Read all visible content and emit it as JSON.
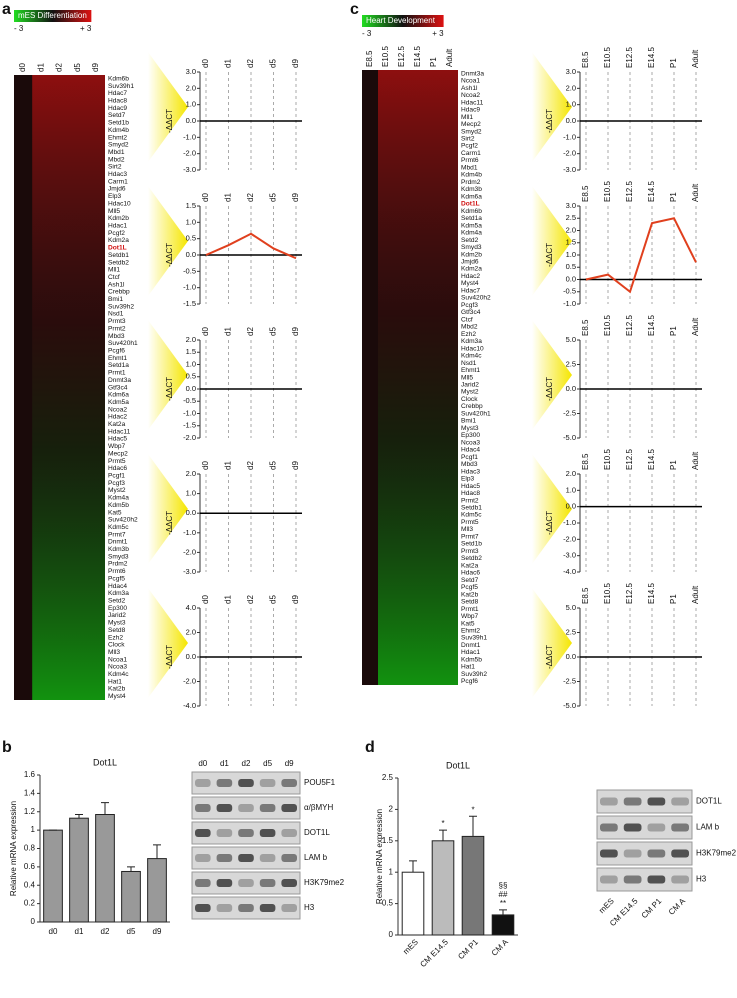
{
  "panel_labels": [
    "a",
    "b",
    "c",
    "d"
  ],
  "heatmap_a": {
    "title": "mES Differentiation",
    "scale_min": "- 3",
    "scale_max": "+ 3",
    "columns": [
      "d0",
      "d1",
      "d2",
      "d5",
      "d9"
    ],
    "highlight": 23,
    "genes": [
      "Kdm6b",
      "Suv39h1",
      "Hdac7",
      "Hdac8",
      "Hdac9",
      "Setd7",
      "Setd1b",
      "Kdm4b",
      "Ehmt2",
      "Smyd2",
      "Mbd1",
      "Mbd2",
      "Sirt2",
      "Hdac3",
      "Carm1",
      "Jmjd6",
      "Elp3",
      "Hdac10",
      "Mll5",
      "Kdm2b",
      "Hdac1",
      "Pcgf2",
      "Kdm2a",
      "Dot1L",
      "Setdb1",
      "Setdb2",
      "Mll1",
      "Ctcf",
      "Ash1l",
      "Crebbp",
      "Bmi1",
      "Suv39h2",
      "Nsd1",
      "Prmt3",
      "Prmt2",
      "Mbd3",
      "Suv420h1",
      "Pcgf6",
      "Ehmt1",
      "Setd1a",
      "Prmt1",
      "Dnmt3a",
      "Gtf3c4",
      "Kdm6a",
      "Kdm5a",
      "Ncoa2",
      "Hdac2",
      "Kat2a",
      "Hdac11",
      "Hdac5",
      "Wbp7",
      "Mecp2",
      "Prmt5",
      "Hdac6",
      "Pcgf1",
      "Pcgf3",
      "Myst2",
      "Kdm4a",
      "Kdm5b",
      "Kat5",
      "Suv420h2",
      "Kdm5c",
      "Prmt7",
      "Dnmt1",
      "Kdm3b",
      "Smyd3",
      "Prdm2",
      "Prmt6",
      "Pcgf5",
      "Hdac4",
      "Kdm3a",
      "Setd2",
      "Ep300",
      "Jarid2",
      "Myst3",
      "Setd8",
      "Ezh2",
      "Clock",
      "Mll3",
      "Ncoa1",
      "Ncoa3",
      "Kdm4c",
      "Hat1",
      "Kat2b",
      "Myst4"
    ]
  },
  "heatmap_c": {
    "title": "Heart Development",
    "scale_min": "- 3",
    "scale_max": "+ 3",
    "columns": [
      "E8.5",
      "E10.5",
      "E12.5",
      "E14.5",
      "P1",
      "Adult"
    ],
    "highlight": 18,
    "genes": [
      "Dnmt3a",
      "Ncoa1",
      "Ash1l",
      "Ncoa2",
      "Hdac11",
      "Hdac9",
      "Mll1",
      "Mecp2",
      "Smyd2",
      "Sirt2",
      "Pcgf2",
      "Carm1",
      "Prmt6",
      "Mbd1",
      "Kdm4b",
      "Prdm2",
      "Kdm3b",
      "Kdm6a",
      "Dot1L",
      "Kdm6b",
      "Setd1a",
      "Kdm5a",
      "Kdm4a",
      "Setd2",
      "Smyd3",
      "Kdm2b",
      "Jmjd6",
      "Kdm2a",
      "Hdac2",
      "Myst4",
      "Hdac7",
      "Suv420h2",
      "Pcgf3",
      "Gtf3c4",
      "Ctcf",
      "Mbd2",
      "Ezh2",
      "Kdm3a",
      "Hdac10",
      "Kdm4c",
      "Nsd1",
      "Ehmt1",
      "Mll5",
      "Jarid2",
      "Myst2",
      "Clock",
      "Crebbp",
      "Suv420h1",
      "Bmi1",
      "Myst3",
      "Ep300",
      "Ncoa3",
      "Hdac4",
      "Pcgf1",
      "Mbd3",
      "Hdac3",
      "Elp3",
      "Hdac5",
      "Hdac8",
      "Prmt2",
      "Setdb1",
      "Kdm5c",
      "Prmt5",
      "Mll3",
      "Prmt7",
      "Setd1b",
      "Prmt3",
      "Setdb2",
      "Kat2a",
      "Hdac6",
      "Setd7",
      "Pcgf5",
      "Kat2b",
      "Setd8",
      "Prmt1",
      "Wbp7",
      "Kat5",
      "Ehmt2",
      "Suv39h1",
      "Dnmt1",
      "Hdac1",
      "Kdm5b",
      "Hat1",
      "Suv39h2",
      "Pcgf6"
    ]
  },
  "profiles_a": [
    {
      "type": "line",
      "ylabel": "-ΔΔCT",
      "categories": [
        "d0",
        "d1",
        "d2",
        "d5",
        "d9"
      ],
      "ylim": [
        -3,
        3
      ],
      "yticks": [
        {
          "value": 3,
          "label": "3.0"
        },
        {
          "value": 2,
          "label": "2.0"
        },
        {
          "value": 1,
          "label": "1.0"
        },
        {
          "value": 0,
          "label": "0.0"
        },
        {
          "value": -1,
          "label": "-1.0"
        },
        {
          "value": -2,
          "label": "-2.0"
        },
        {
          "value": -3,
          "label": "-3.0"
        }
      ],
      "series": []
    },
    {
      "type": "line",
      "ylabel": "-ΔΔCT",
      "categories": [
        "d0",
        "d1",
        "d2",
        "d5",
        "d9"
      ],
      "ylim": [
        -1.5,
        1.5
      ],
      "yticks": [
        {
          "value": 1.5,
          "label": "1.5"
        },
        {
          "value": 1,
          "label": "1.0"
        },
        {
          "value": 0.5,
          "label": "0.5"
        },
        {
          "value": 0,
          "label": "0.0"
        },
        {
          "value": -0.5,
          "label": "-0.5"
        },
        {
          "value": -1,
          "label": "-1.0"
        },
        {
          "value": -1.5,
          "label": "-1.5"
        }
      ],
      "series": [
        {
          "color": "#e0401e",
          "values": [
            0,
            0.3,
            0.65,
            0.2,
            -0.1
          ]
        }
      ]
    },
    {
      "type": "line",
      "ylabel": "-ΔΔCT",
      "categories": [
        "d0",
        "d1",
        "d2",
        "d5",
        "d9"
      ],
      "ylim": [
        -2,
        2
      ],
      "yticks": [
        {
          "value": 2,
          "label": "2.0"
        },
        {
          "value": 1.5,
          "label": "1.5"
        },
        {
          "value": 1,
          "label": "1.0"
        },
        {
          "value": 0.5,
          "label": "0.5"
        },
        {
          "value": 0,
          "label": "0.0"
        },
        {
          "value": -0.5,
          "label": "-0.5"
        },
        {
          "value": -1,
          "label": "-1.0"
        },
        {
          "value": -1.5,
          "label": "-1.5"
        },
        {
          "value": -2,
          "label": "-2.0"
        }
      ],
      "series": []
    },
    {
      "type": "line",
      "ylabel": "-ΔΔCT",
      "categories": [
        "d0",
        "d1",
        "d2",
        "d5",
        "d9"
      ],
      "ylim": [
        -3,
        2
      ],
      "yticks": [
        {
          "value": 2,
          "label": "2.0"
        },
        {
          "value": 1,
          "label": "1.0"
        },
        {
          "value": 0,
          "label": "0.0"
        },
        {
          "value": -1,
          "label": "-1.0"
        },
        {
          "value": -2,
          "label": "-2.0"
        },
        {
          "value": -3,
          "label": "-3.0"
        }
      ],
      "series": []
    },
    {
      "type": "line",
      "ylabel": "-ΔΔCT",
      "categories": [
        "d0",
        "d1",
        "d2",
        "d5",
        "d9"
      ],
      "ylim": [
        -4,
        4
      ],
      "yticks": [
        {
          "value": 4,
          "label": "4.0"
        },
        {
          "value": 2,
          "label": "2.0"
        },
        {
          "value": 0,
          "label": "0.0"
        },
        {
          "value": -2,
          "label": "-2.0"
        },
        {
          "value": -4,
          "label": "-4.0"
        }
      ],
      "series": []
    }
  ],
  "profiles_c": [
    {
      "type": "line",
      "ylabel": "-ΔΔCT",
      "categories": [
        "E8.5",
        "E10.5",
        "E12.5",
        "E14.5",
        "P1",
        "Adult"
      ],
      "ylim": [
        -3,
        3
      ],
      "yticks": [
        {
          "value": 3,
          "label": "3.0"
        },
        {
          "value": 2,
          "label": "2.0"
        },
        {
          "value": 1,
          "label": "1.0"
        },
        {
          "value": 0,
          "label": "0.0"
        },
        {
          "value": -1,
          "label": "-1.0"
        },
        {
          "value": -2,
          "label": "-2.0"
        },
        {
          "value": -3,
          "label": "-3.0"
        }
      ],
      "series": []
    },
    {
      "type": "line",
      "ylabel": "-ΔΔCT",
      "categories": [
        "E8.5",
        "E10.5",
        "E12.5",
        "E14.5",
        "P1",
        "Adult"
      ],
      "ylim": [
        -1,
        3
      ],
      "yticks": [
        {
          "value": 3,
          "label": "3.0"
        },
        {
          "value": 2.5,
          "label": "2.5"
        },
        {
          "value": 2,
          "label": "2.0"
        },
        {
          "value": 1.5,
          "label": "1.5"
        },
        {
          "value": 1,
          "label": "1.0"
        },
        {
          "value": 0.5,
          "label": "0.5"
        },
        {
          "value": 0,
          "label": "0.0"
        },
        {
          "value": -0.5,
          "label": "-0.5"
        },
        {
          "value": -1,
          "label": "-1.0"
        }
      ],
      "series": [
        {
          "color": "#e0401e",
          "values": [
            0,
            0.2,
            -0.5,
            2.3,
            2.5,
            0.7
          ]
        }
      ]
    },
    {
      "type": "line",
      "ylabel": "-ΔΔCT",
      "categories": [
        "E8.5",
        "E10.5",
        "E12.5",
        "E14.5",
        "P1",
        "Adult"
      ],
      "ylim": [
        -5,
        5
      ],
      "yticks": [
        {
          "value": 5,
          "label": "5.0"
        },
        {
          "value": 2.5,
          "label": "2.5"
        },
        {
          "value": 0,
          "label": "0.0"
        },
        {
          "value": -2.5,
          "label": "-2.5"
        },
        {
          "value": -5,
          "label": "-5.0"
        }
      ],
      "series": []
    },
    {
      "type": "line",
      "ylabel": "-ΔΔCT",
      "categories": [
        "E8.5",
        "E10.5",
        "E12.5",
        "E14.5",
        "P1",
        "Adult"
      ],
      "ylim": [
        -4,
        2
      ],
      "yticks": [
        {
          "value": 2,
          "label": "2.0"
        },
        {
          "value": 1,
          "label": "1.0"
        },
        {
          "value": 0,
          "label": "0.0"
        },
        {
          "value": -1,
          "label": "-1.0"
        },
        {
          "value": -2,
          "label": "-2.0"
        },
        {
          "value": -3,
          "label": "-3.0"
        },
        {
          "value": -4,
          "label": "-4.0"
        }
      ],
      "series": []
    },
    {
      "type": "line",
      "ylabel": "-ΔΔCT",
      "categories": [
        "E8.5",
        "E10.5",
        "E12.5",
        "E14.5",
        "P1",
        "Adult"
      ],
      "ylim": [
        -5,
        5
      ],
      "yticks": [
        {
          "value": 5,
          "label": "5.0"
        },
        {
          "value": 2.5,
          "label": "2.5"
        },
        {
          "value": 0,
          "label": "0.0"
        },
        {
          "value": -2.5,
          "label": "-2.5"
        },
        {
          "value": -5,
          "label": "-5.0"
        }
      ],
      "series": []
    }
  ],
  "bar_b": {
    "type": "bar",
    "title": "Dot1L",
    "ylabel": "Relative mRNA expression",
    "categories": [
      "d0",
      "d1",
      "d2",
      "d5",
      "d9"
    ],
    "values": [
      1.0,
      1.13,
      1.17,
      0.55,
      0.69
    ],
    "errors": [
      0,
      0.04,
      0.13,
      0.05,
      0.15
    ],
    "colors": [
      "#999999",
      "#999999",
      "#999999",
      "#999999",
      "#999999"
    ],
    "ylim": [
      0,
      1.6
    ],
    "yticks": [
      0,
      0.2,
      0.4,
      0.6,
      0.8,
      1,
      {
        "value": 1.2,
        "label": "1.2"
      },
      1.4,
      1.6
    ],
    "annotations": [
      [],
      [],
      [],
      [],
      []
    ]
  },
  "bar_d": {
    "type": "bar",
    "title": "Dot1L",
    "ylabel": "Relative mRNA expression",
    "categories": [
      "mES",
      "CM E14.5",
      "CM P1",
      "CM A"
    ],
    "values": [
      1.0,
      1.5,
      1.57,
      0.32
    ],
    "errors": [
      0.18,
      0.17,
      0.32,
      0.08
    ],
    "colors": [
      "#ffffff",
      "#bbbbbb",
      "#777777",
      "#111111"
    ],
    "ylim": [
      0,
      2.5
    ],
    "yticks": [
      0,
      0.5,
      1,
      1.5,
      2,
      2.5
    ],
    "annotations": [
      [],
      [
        "*"
      ],
      [
        "*"
      ],
      [
        "§§",
        "##",
        "**"
      ]
    ]
  },
  "blot_b": {
    "columns": [
      "d0",
      "d1",
      "d2",
      "d5",
      "d9"
    ],
    "rows": [
      "POU5F1",
      "α/βMYH",
      "DOT1L",
      "LAM b",
      "H3K79me2",
      "H3"
    ]
  },
  "blot_d": {
    "columns": [
      "mES",
      "CM E14.5",
      "CM P1",
      "CM A"
    ],
    "rows": [
      "DOT1L",
      "LAM b",
      "H3K79me2",
      "H3"
    ]
  }
}
